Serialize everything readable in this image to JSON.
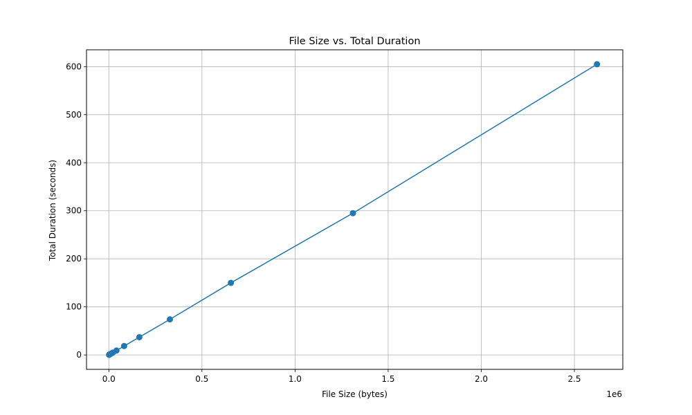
{
  "chart_data": {
    "type": "line",
    "title": "File Size vs. Total Duration",
    "xlabel": "File Size (bytes)",
    "ylabel": "Total Duration (seconds)",
    "x_offset_label": "1e6",
    "xlim": [
      -120000,
      2760000
    ],
    "ylim": [
      -30,
      635
    ],
    "x_ticks": [
      0,
      500000,
      1000000,
      1500000,
      2000000,
      2500000
    ],
    "x_tick_labels": [
      "0.0",
      "0.5",
      "1.0",
      "1.5",
      "2.0",
      "2.5"
    ],
    "y_ticks": [
      0,
      100,
      200,
      300,
      400,
      500,
      600
    ],
    "y_tick_labels": [
      "0",
      "100",
      "200",
      "300",
      "400",
      "500",
      "600"
    ],
    "grid": true,
    "marker": "circle",
    "color": "#1f77b4",
    "series": [
      {
        "x": [
          1280,
          2560,
          5120,
          10240,
          20480,
          40960,
          81920,
          163840,
          327680,
          655360,
          1310720,
          2621440
        ],
        "y": [
          0.3,
          0.6,
          1.2,
          2.4,
          4.7,
          9.2,
          18.5,
          37,
          74,
          150,
          295,
          605
        ]
      }
    ]
  }
}
